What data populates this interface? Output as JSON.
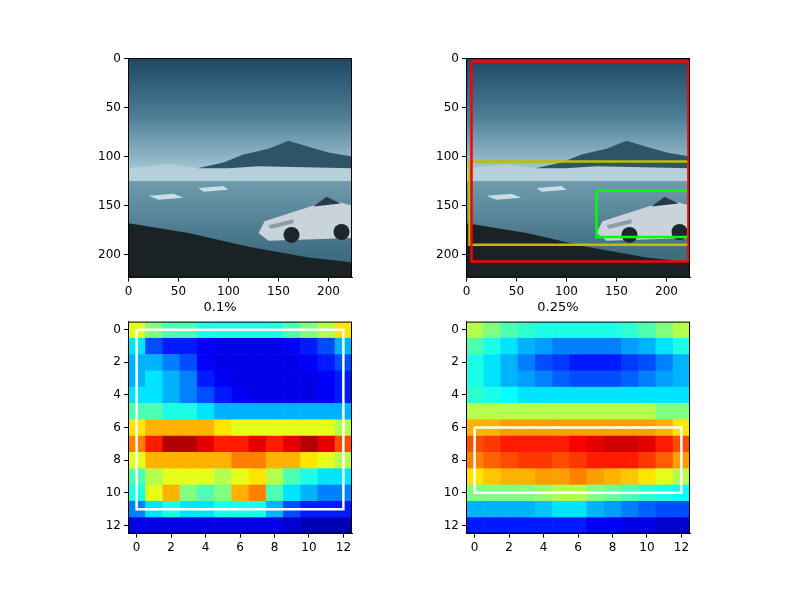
{
  "chart_data": [
    {
      "type": "image",
      "xlim": [
        -0.5,
        223.5
      ],
      "ylim": [
        223.5,
        -0.5
      ],
      "xticks": [
        0,
        50,
        100,
        150,
        200
      ],
      "yticks": [
        0,
        50,
        100,
        150,
        200
      ]
    },
    {
      "type": "image",
      "xlim": [
        -0.5,
        223.5
      ],
      "ylim": [
        223.5,
        -0.5
      ],
      "xticks": [
        0,
        50,
        100,
        150,
        200
      ],
      "yticks": [
        0,
        50,
        100,
        150,
        200
      ],
      "series": [
        {
          "color": "#ff0000",
          "x": [
            5,
            222,
            222,
            5,
            5
          ],
          "values": [
            3,
            3,
            207,
            207,
            3
          ]
        },
        {
          "color": "#bfbf00",
          "x": [
            3,
            222,
            222,
            3,
            3
          ],
          "values": [
            105,
            105,
            190,
            190,
            105
          ]
        },
        {
          "color": "#00ff00",
          "x": [
            130,
            222,
            222,
            130,
            130
          ],
          "values": [
            135,
            135,
            182,
            182,
            135
          ]
        }
      ]
    },
    {
      "type": "heatmap",
      "title": "0.1%",
      "xlim": [
        -0.5,
        12.5
      ],
      "ylim": [
        12.5,
        -0.5
      ],
      "xticks": [
        0,
        2,
        4,
        6,
        8,
        10,
        12
      ],
      "yticks": [
        0,
        2,
        4,
        6,
        8,
        10,
        12
      ],
      "color": "jet",
      "cell_range": [
        0,
        1
      ],
      "cells": [
        [
          0.6,
          0.5,
          0.45,
          0.45,
          0.4,
          0.4,
          0.4,
          0.4,
          0.4,
          0.45,
          0.5,
          0.55,
          0.65
        ],
        [
          0.35,
          0.2,
          0.15,
          0.15,
          0.12,
          0.1,
          0.1,
          0.1,
          0.1,
          0.12,
          0.15,
          0.2,
          0.3
        ],
        [
          0.3,
          0.3,
          0.25,
          0.2,
          0.12,
          0.1,
          0.1,
          0.1,
          0.1,
          0.1,
          0.12,
          0.15,
          0.2
        ],
        [
          0.3,
          0.35,
          0.3,
          0.25,
          0.15,
          0.12,
          0.1,
          0.1,
          0.1,
          0.1,
          0.1,
          0.12,
          0.15
        ],
        [
          0.35,
          0.35,
          0.3,
          0.25,
          0.2,
          0.15,
          0.12,
          0.1,
          0.1,
          0.1,
          0.1,
          0.12,
          0.15
        ],
        [
          0.45,
          0.45,
          0.4,
          0.4,
          0.35,
          0.3,
          0.3,
          0.3,
          0.3,
          0.3,
          0.3,
          0.3,
          0.3
        ],
        [
          0.65,
          0.7,
          0.7,
          0.7,
          0.7,
          0.65,
          0.6,
          0.6,
          0.6,
          0.6,
          0.6,
          0.6,
          0.55
        ],
        [
          0.75,
          0.85,
          0.95,
          0.95,
          0.9,
          0.85,
          0.85,
          0.9,
          0.85,
          0.9,
          0.95,
          0.9,
          0.8
        ],
        [
          0.6,
          0.7,
          0.7,
          0.7,
          0.7,
          0.7,
          0.75,
          0.75,
          0.7,
          0.7,
          0.65,
          0.6,
          0.55
        ],
        [
          0.45,
          0.55,
          0.6,
          0.6,
          0.6,
          0.55,
          0.6,
          0.65,
          0.55,
          0.45,
          0.4,
          0.35,
          0.35
        ],
        [
          0.4,
          0.6,
          0.7,
          0.5,
          0.45,
          0.5,
          0.7,
          0.75,
          0.45,
          0.35,
          0.3,
          0.25,
          0.25
        ],
        [
          0.25,
          0.35,
          0.4,
          0.35,
          0.35,
          0.4,
          0.4,
          0.4,
          0.3,
          0.2,
          0.15,
          0.15,
          0.15
        ],
        [
          0.1,
          0.1,
          0.1,
          0.1,
          0.1,
          0.1,
          0.1,
          0.1,
          0.1,
          0.08,
          0.05,
          0.05,
          0.05
        ]
      ],
      "series": [
        {
          "color": "#ffffff",
          "x": [
            0,
            12,
            12,
            0,
            0
          ],
          "values": [
            0,
            0,
            11,
            11,
            0
          ]
        }
      ]
    },
    {
      "type": "heatmap",
      "title": "0.25%",
      "xlim": [
        -0.5,
        12.5
      ],
      "ylim": [
        12.5,
        -0.5
      ],
      "xticks": [
        0,
        2,
        4,
        6,
        8,
        10,
        12
      ],
      "yticks": [
        0,
        2,
        4,
        6,
        8,
        10,
        12
      ],
      "color": "jet",
      "cell_range": [
        0,
        1
      ],
      "cells": [
        [
          0.55,
          0.5,
          0.45,
          0.42,
          0.4,
          0.4,
          0.4,
          0.4,
          0.4,
          0.42,
          0.45,
          0.5,
          0.55
        ],
        [
          0.45,
          0.4,
          0.35,
          0.3,
          0.28,
          0.25,
          0.25,
          0.25,
          0.25,
          0.28,
          0.3,
          0.35,
          0.4
        ],
        [
          0.4,
          0.35,
          0.3,
          0.25,
          0.2,
          0.18,
          0.15,
          0.15,
          0.15,
          0.18,
          0.2,
          0.25,
          0.3
        ],
        [
          0.4,
          0.35,
          0.3,
          0.28,
          0.25,
          0.22,
          0.2,
          0.2,
          0.2,
          0.22,
          0.25,
          0.28,
          0.3
        ],
        [
          0.42,
          0.4,
          0.38,
          0.35,
          0.35,
          0.35,
          0.35,
          0.35,
          0.35,
          0.35,
          0.35,
          0.35,
          0.35
        ],
        [
          0.55,
          0.55,
          0.55,
          0.55,
          0.55,
          0.55,
          0.55,
          0.55,
          0.55,
          0.55,
          0.55,
          0.5,
          0.5
        ],
        [
          0.7,
          0.7,
          0.72,
          0.72,
          0.72,
          0.72,
          0.72,
          0.72,
          0.72,
          0.72,
          0.72,
          0.7,
          0.65
        ],
        [
          0.8,
          0.82,
          0.85,
          0.85,
          0.85,
          0.85,
          0.88,
          0.9,
          0.92,
          0.92,
          0.9,
          0.85,
          0.8
        ],
        [
          0.75,
          0.78,
          0.8,
          0.82,
          0.82,
          0.8,
          0.82,
          0.85,
          0.85,
          0.85,
          0.82,
          0.78,
          0.72
        ],
        [
          0.65,
          0.68,
          0.7,
          0.7,
          0.72,
          0.72,
          0.75,
          0.72,
          0.7,
          0.68,
          0.65,
          0.6,
          0.55
        ],
        [
          0.5,
          0.5,
          0.5,
          0.5,
          0.52,
          0.55,
          0.55,
          0.5,
          0.48,
          0.45,
          0.42,
          0.4,
          0.38
        ],
        [
          0.3,
          0.3,
          0.3,
          0.3,
          0.32,
          0.35,
          0.35,
          0.3,
          0.28,
          0.25,
          0.22,
          0.2,
          0.2
        ],
        [
          0.15,
          0.15,
          0.15,
          0.15,
          0.15,
          0.15,
          0.15,
          0.12,
          0.12,
          0.1,
          0.1,
          0.08,
          0.08
        ]
      ],
      "series": [
        {
          "color": "#ffffff",
          "x": [
            0,
            12,
            12,
            0,
            0
          ],
          "values": [
            6,
            6,
            10,
            10,
            6
          ]
        }
      ]
    }
  ]
}
